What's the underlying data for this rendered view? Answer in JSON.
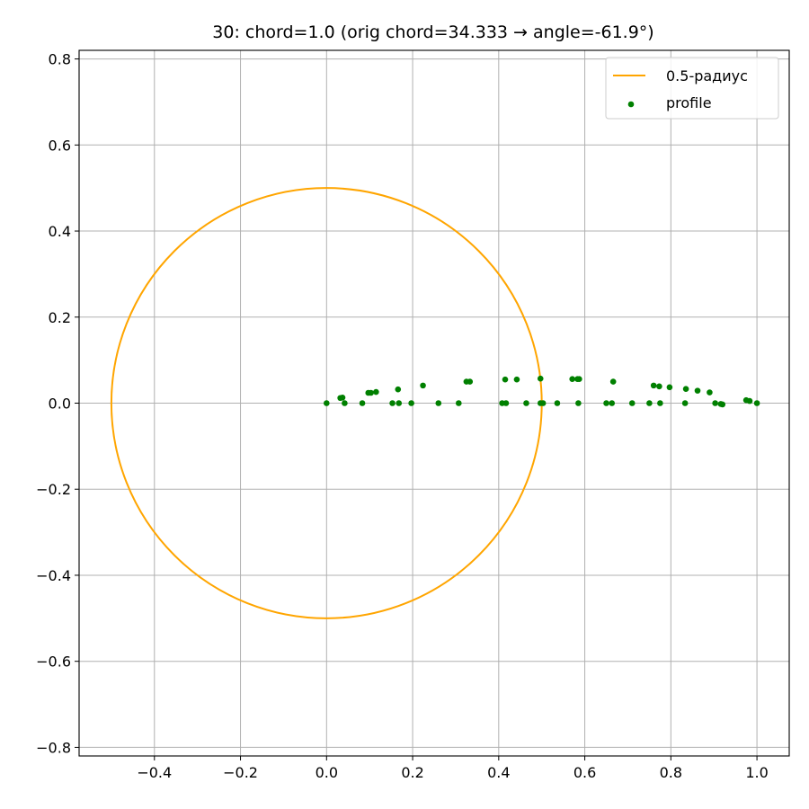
{
  "chart_data": {
    "type": "scatter",
    "title": "30: chord=1.0  (orig chord=34.333 → angle=-61.9°)",
    "xlabel": "",
    "ylabel": "",
    "xlim": [
      -0.575,
      1.075
    ],
    "ylim": [
      -0.82,
      0.82
    ],
    "xticks": [
      -0.4,
      -0.2,
      0.0,
      0.2,
      0.4,
      0.6,
      0.8,
      1.0
    ],
    "xtick_labels": [
      "−0.4",
      "−0.2",
      "0.0",
      "0.2",
      "0.4",
      "0.6",
      "0.8",
      "1.0"
    ],
    "yticks": [
      -0.8,
      -0.6,
      -0.4,
      -0.2,
      0.0,
      0.2,
      0.4,
      0.6,
      0.8
    ],
    "ytick_labels": [
      "−0.8",
      "−0.6",
      "−0.4",
      "−0.2",
      "0.0",
      "0.2",
      "0.4",
      "0.6",
      "0.8"
    ],
    "grid": true,
    "legend_position": "top-right",
    "circle": {
      "name": "0.5-радиус",
      "center": [
        0.0,
        0.0
      ],
      "radius": 0.5,
      "color": "#FFA500"
    },
    "series": [
      {
        "name": "profile",
        "color": "#008000",
        "points": [
          [
            0.0,
            0.0
          ],
          [
            0.032,
            0.012
          ],
          [
            0.037,
            0.013
          ],
          [
            0.042,
            0.0
          ],
          [
            0.083,
            0.0
          ],
          [
            0.097,
            0.024
          ],
          [
            0.103,
            0.024
          ],
          [
            0.115,
            0.026
          ],
          [
            0.153,
            0.0
          ],
          [
            0.166,
            0.032
          ],
          [
            0.168,
            0.0
          ],
          [
            0.197,
            0.0
          ],
          [
            0.224,
            0.041
          ],
          [
            0.26,
            0.0
          ],
          [
            0.307,
            0.0
          ],
          [
            0.325,
            0.05
          ],
          [
            0.333,
            0.05
          ],
          [
            0.408,
            0.0
          ],
          [
            0.415,
            0.055
          ],
          [
            0.417,
            0.0
          ],
          [
            0.442,
            0.055
          ],
          [
            0.464,
            0.0
          ],
          [
            0.497,
            0.0
          ],
          [
            0.497,
            0.057
          ],
          [
            0.503,
            0.0
          ],
          [
            0.536,
            0.0
          ],
          [
            0.571,
            0.056
          ],
          [
            0.583,
            0.056
          ],
          [
            0.587,
            0.056
          ],
          [
            0.585,
            0.0
          ],
          [
            0.65,
            0.0
          ],
          [
            0.663,
            0.0
          ],
          [
            0.666,
            0.05
          ],
          [
            0.71,
            0.0
          ],
          [
            0.75,
            0.0
          ],
          [
            0.76,
            0.041
          ],
          [
            0.773,
            0.039
          ],
          [
            0.775,
            0.0
          ],
          [
            0.797,
            0.037
          ],
          [
            0.833,
            0.0
          ],
          [
            0.835,
            0.033
          ],
          [
            0.862,
            0.029
          ],
          [
            0.89,
            0.025
          ],
          [
            0.903,
            0.0
          ],
          [
            0.916,
            -0.002
          ],
          [
            0.92,
            -0.003
          ],
          [
            0.975,
            0.007
          ],
          [
            0.983,
            0.005
          ],
          [
            1.0,
            0.0
          ]
        ]
      }
    ]
  }
}
